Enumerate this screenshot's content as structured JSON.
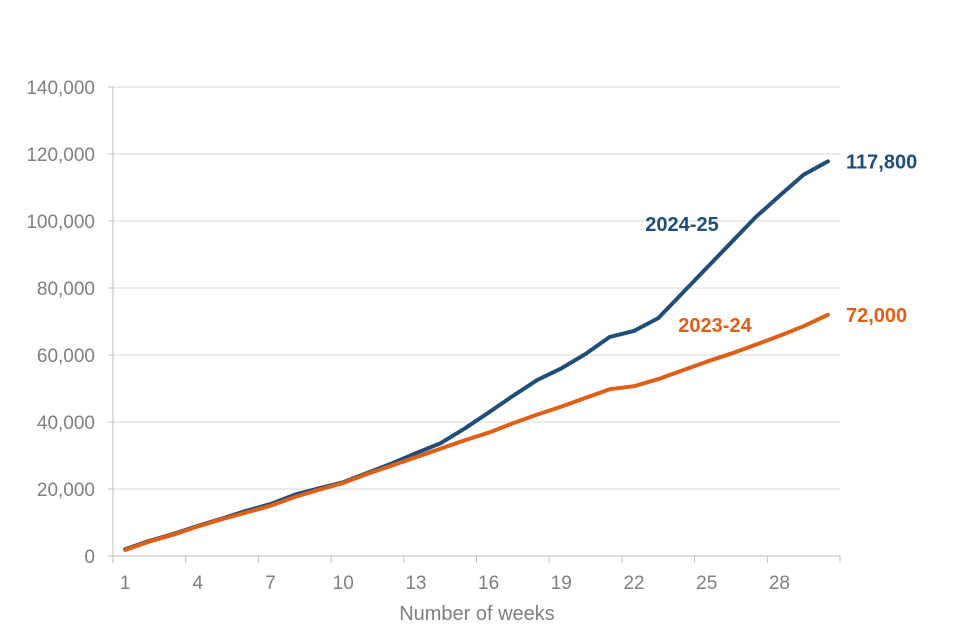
{
  "chart_data": {
    "type": "line",
    "title": "",
    "xlabel": "Number of weeks",
    "ylabel": "",
    "x": [
      1,
      2,
      3,
      4,
      5,
      6,
      7,
      8,
      9,
      10,
      11,
      12,
      13,
      14,
      15,
      16,
      17,
      18,
      19,
      20,
      21,
      22,
      23,
      24,
      25,
      26,
      27,
      28,
      29,
      30
    ],
    "xticks": [
      1,
      4,
      7,
      10,
      13,
      16,
      19,
      22,
      25,
      28
    ],
    "xlim": [
      0.5,
      30.5
    ],
    "ylim": [
      0,
      140000
    ],
    "yticks": [
      0,
      20000,
      40000,
      60000,
      80000,
      100000,
      120000,
      140000
    ],
    "ytick_labels": [
      "0",
      "20,000",
      "40,000",
      "60,000",
      "80,000",
      "100,000",
      "120,000",
      "140,000"
    ],
    "grid": true,
    "legend": "none",
    "series": [
      {
        "name": "2024-25",
        "color": "#1f4e79",
        "end_label": "117,800",
        "values": [
          2000,
          4500,
          6600,
          9000,
          11200,
          13500,
          15500,
          18300,
          20200,
          22000,
          24800,
          27600,
          30700,
          33600,
          38000,
          42800,
          47800,
          52500,
          56000,
          60300,
          65400,
          67200,
          71000,
          78500,
          86000,
          93500,
          101000,
          107500,
          113800,
          117800
        ]
      },
      {
        "name": "2023-24",
        "color": "#e05f16",
        "end_label": "72,000",
        "values": [
          1800,
          4300,
          6400,
          8800,
          11000,
          13000,
          15000,
          17600,
          19800,
          21800,
          24500,
          27000,
          29500,
          32000,
          34500,
          36800,
          39600,
          42200,
          44600,
          47200,
          49800,
          50700,
          52800,
          55400,
          58000,
          60400,
          63000,
          65700,
          68600,
          72000
        ]
      }
    ]
  }
}
